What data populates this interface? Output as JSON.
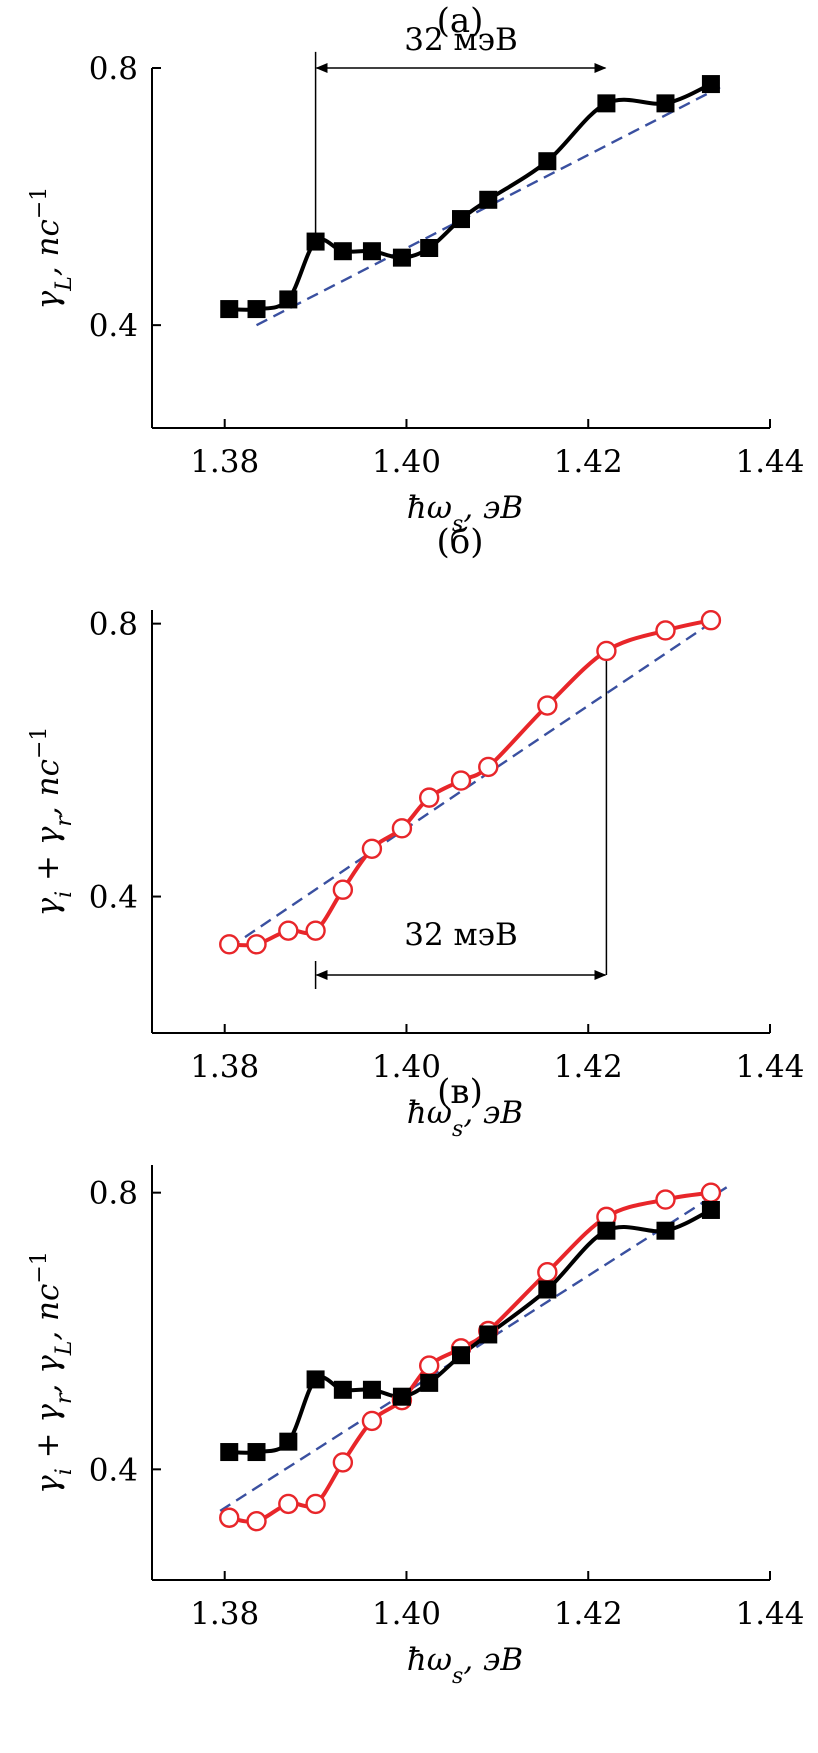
{
  "chart_data": [
    {
      "type": "line",
      "panel_label": "(а)",
      "xlabel": "ħω_s, эВ",
      "ylabel": "γ_L, пс⁻¹",
      "xlim": [
        1.372,
        1.44
      ],
      "ylim": [
        0.24,
        0.8
      ],
      "xticks": [
        "1.38",
        "1.40",
        "1.42",
        "1.44"
      ],
      "yticks": [
        "0.4",
        "0.8"
      ],
      "xticks_values": [
        1.38,
        1.4,
        1.42,
        1.44
      ],
      "yticks_values": [
        0.4,
        0.8
      ],
      "series": [
        {
          "key": "gamma_L",
          "marker": "filled-square",
          "color": "#000000",
          "points": [
            [
              1.3805,
              0.425
            ],
            [
              1.3835,
              0.425
            ],
            [
              1.387,
              0.44
            ],
            [
              1.39,
              0.53
            ],
            [
              1.393,
              0.515
            ],
            [
              1.3962,
              0.515
            ],
            [
              1.3995,
              0.505
            ],
            [
              1.4025,
              0.52
            ],
            [
              1.406,
              0.565
            ],
            [
              1.409,
              0.595
            ],
            [
              1.4155,
              0.655
            ],
            [
              1.422,
              0.745
            ],
            [
              1.4285,
              0.745
            ],
            [
              1.4335,
              0.775
            ]
          ]
        },
        {
          "key": "trend",
          "style": "dashed",
          "color": "#3a50a0",
          "points": [
            [
              1.3835,
              0.4
            ],
            [
              1.4345,
              0.77
            ]
          ]
        }
      ],
      "annotation": {
        "text": "32 мэВ",
        "from_x": 1.39,
        "to_x": 1.422,
        "arrow_y": 0.8,
        "text_y": 0.845,
        "vline": {
          "x": 1.39,
          "y_from": 0.53,
          "y_to": 0.825
        }
      }
    },
    {
      "type": "line",
      "panel_label": "(б)",
      "xlabel": "ħω_s, эВ",
      "ylabel": "γ_i + γ_r, пс⁻¹",
      "xlim": [
        1.372,
        1.44
      ],
      "ylim": [
        0.2,
        0.82
      ],
      "xticks": [
        "1.38",
        "1.40",
        "1.42",
        "1.44"
      ],
      "yticks": [
        "0.4",
        "0.8"
      ],
      "xticks_values": [
        1.38,
        1.4,
        1.42,
        1.44
      ],
      "yticks_values": [
        0.4,
        0.8
      ],
      "series": [
        {
          "key": "gamma_ir",
          "marker": "open-circle",
          "color": "#e8262a",
          "points": [
            [
              1.3805,
              0.33
            ],
            [
              1.3835,
              0.33
            ],
            [
              1.387,
              0.35
            ],
            [
              1.39,
              0.35
            ],
            [
              1.393,
              0.41
            ],
            [
              1.3962,
              0.47
            ],
            [
              1.3995,
              0.5
            ],
            [
              1.4025,
              0.545
            ],
            [
              1.406,
              0.57
            ],
            [
              1.409,
              0.59
            ],
            [
              1.4155,
              0.68
            ],
            [
              1.422,
              0.76
            ],
            [
              1.4285,
              0.79
            ],
            [
              1.4335,
              0.805
            ]
          ]
        },
        {
          "key": "trend",
          "style": "dashed",
          "color": "#3a50a0",
          "points": [
            [
              1.3805,
              0.325
            ],
            [
              1.4345,
              0.81
            ]
          ]
        }
      ],
      "annotation": {
        "text": "32 мэВ",
        "from_x": 1.39,
        "to_x": 1.422,
        "arrow_y": 0.285,
        "text_y": 0.345,
        "vline": {
          "x": 1.422,
          "y_from": 0.285,
          "y_to": 0.76
        },
        "tick_at_start": true
      }
    },
    {
      "type": "line",
      "panel_label": "(в)",
      "xlabel": "ħω_s, эВ",
      "ylabel": "γ_i + γ_r, γ_L, пс⁻¹",
      "xlim": [
        1.372,
        1.44
      ],
      "ylim": [
        0.24,
        0.84
      ],
      "xticks": [
        "1.38",
        "1.40",
        "1.42",
        "1.44"
      ],
      "yticks": [
        "0.4",
        "0.8"
      ],
      "xticks_values": [
        1.38,
        1.4,
        1.42,
        1.44
      ],
      "yticks_values": [
        0.4,
        0.8
      ],
      "series": [
        {
          "key": "gamma_ir",
          "marker": "open-circle",
          "color": "#e8262a",
          "points": [
            [
              1.3805,
              0.33
            ],
            [
              1.3835,
              0.325
            ],
            [
              1.387,
              0.35
            ],
            [
              1.39,
              0.35
            ],
            [
              1.393,
              0.41
            ],
            [
              1.3962,
              0.47
            ],
            [
              1.3995,
              0.5
            ],
            [
              1.4025,
              0.55
            ],
            [
              1.406,
              0.575
            ],
            [
              1.409,
              0.6
            ],
            [
              1.4155,
              0.685
            ],
            [
              1.422,
              0.765
            ],
            [
              1.4285,
              0.79
            ],
            [
              1.4335,
              0.8
            ]
          ]
        },
        {
          "key": "gamma_L",
          "marker": "filled-square",
          "color": "#000000",
          "points": [
            [
              1.3805,
              0.425
            ],
            [
              1.3835,
              0.425
            ],
            [
              1.387,
              0.44
            ],
            [
              1.39,
              0.53
            ],
            [
              1.393,
              0.515
            ],
            [
              1.3962,
              0.515
            ],
            [
              1.3995,
              0.505
            ],
            [
              1.4025,
              0.525
            ],
            [
              1.406,
              0.565
            ],
            [
              1.409,
              0.595
            ],
            [
              1.4155,
              0.66
            ],
            [
              1.422,
              0.745
            ],
            [
              1.4285,
              0.745
            ],
            [
              1.4335,
              0.775
            ]
          ]
        },
        {
          "key": "trend",
          "style": "dashed",
          "color": "#3a50a0",
          "points": [
            [
              1.3795,
              0.34
            ],
            [
              1.4355,
              0.81
            ]
          ]
        }
      ]
    }
  ]
}
